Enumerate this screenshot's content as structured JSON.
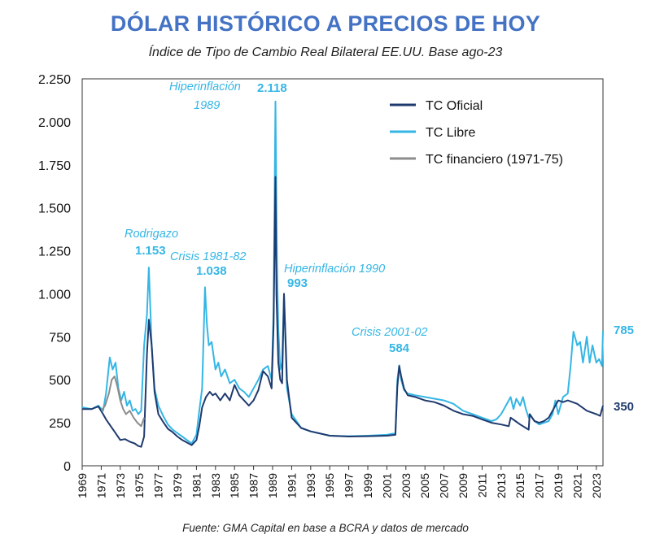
{
  "title": "DÓLAR HISTÓRICO A PRECIOS DE HOY",
  "subtitle": "Índice de Tipo de Cambio Real Bilateral EE.UU. Base ago-23",
  "source": "Fuente: GMA Capital en base a BCRA y datos de mercado",
  "colors": {
    "oficial": "#1f3a6e",
    "libre": "#35b6e5",
    "financiero": "#8c8c8c",
    "title": "#4472c4"
  },
  "chart_data": {
    "type": "line",
    "title": "DÓLAR HISTÓRICO A PRECIOS DE HOY",
    "subtitle": "Índice de Tipo de Cambio Real Bilateral EE.UU. Base ago-23",
    "xlim": [
      1969,
      2023.7
    ],
    "ylim": [
      0,
      2250
    ],
    "yticks": [
      0,
      250,
      500,
      750,
      1000,
      1250,
      1500,
      1750,
      2000,
      2250
    ],
    "ytick_labels": [
      "0",
      "250",
      "500",
      "750",
      "1.000",
      "1.250",
      "1.500",
      "1.750",
      "2.000",
      "2.250"
    ],
    "xticks": [
      "1969",
      "1971",
      "1973",
      "1975",
      "1977",
      "1979",
      "1981",
      "1983",
      "1985",
      "1987",
      "1989",
      "1991",
      "1993",
      "1995",
      "1997",
      "1999",
      "2001",
      "2003",
      "2005",
      "2007",
      "2009",
      "2011",
      "2013",
      "2015",
      "2017",
      "2019",
      "2021",
      "2023"
    ],
    "legend_position": "top-right",
    "grid": false,
    "series": [
      {
        "name": "TC Oficial",
        "color": "#1f3a6e",
        "x": [
          1969.0,
          1970.0,
          1970.7,
          1971.2,
          1971.5,
          1972.0,
          1972.5,
          1973.0,
          1973.5,
          1974.0,
          1974.5,
          1974.9,
          1975.2,
          1975.5,
          1975.8,
          1976.0,
          1976.3,
          1976.6,
          1977.0,
          1977.5,
          1978.0,
          1978.5,
          1979.0,
          1979.5,
          1980.0,
          1980.5,
          1981.0,
          1981.3,
          1981.6,
          1982.0,
          1982.4,
          1982.7,
          1983.0,
          1983.5,
          1984.0,
          1984.5,
          1985.0,
          1985.5,
          1986.0,
          1986.5,
          1987.0,
          1987.5,
          1988.0,
          1988.5,
          1988.9,
          1989.1,
          1989.3,
          1989.4,
          1989.6,
          1989.8,
          1990.0,
          1990.2,
          1990.5,
          1991.0,
          1992.0,
          1993.0,
          1995.0,
          1997.0,
          1999.0,
          2001.0,
          2001.9,
          2002.1,
          2002.3,
          2002.5,
          2002.8,
          2003.2,
          2004.0,
          2005.0,
          2006.0,
          2007.0,
          2008.0,
          2009.0,
          2010.0,
          2011.0,
          2012.0,
          2013.0,
          2013.8,
          2014.0,
          2014.5,
          2015.0,
          2015.9,
          2016.0,
          2016.5,
          2017.0,
          2017.5,
          2018.0,
          2018.4,
          2018.7,
          2019.0,
          2019.5,
          2020.0,
          2020.5,
          2021.0,
          2021.5,
          2022.0,
          2022.5,
          2023.0,
          2023.4,
          2023.6,
          2023.7
        ],
        "y": [
          330,
          330,
          345,
          300,
          270,
          230,
          190,
          150,
          155,
          140,
          130,
          115,
          110,
          170,
          650,
          850,
          700,
          430,
          300,
          255,
          215,
          195,
          170,
          150,
          135,
          120,
          150,
          230,
          340,
          400,
          430,
          410,
          420,
          380,
          420,
          380,
          470,
          410,
          380,
          350,
          380,
          440,
          550,
          520,
          450,
          820,
          1680,
          1000,
          600,
          500,
          480,
          1000,
          500,
          280,
          220,
          200,
          175,
          170,
          172,
          175,
          180,
          460,
          580,
          520,
          450,
          410,
          400,
          380,
          370,
          350,
          320,
          300,
          290,
          270,
          250,
          240,
          230,
          280,
          260,
          240,
          210,
          300,
          260,
          250,
          260,
          280,
          320,
          350,
          380,
          370,
          380,
          370,
          360,
          340,
          320,
          310,
          300,
          290,
          330,
          350
        ]
      },
      {
        "name": "TC Libre",
        "color": "#35b6e5",
        "x": [
          1969.0,
          1970.0,
          1970.7,
          1971.2,
          1971.5,
          1971.9,
          1972.2,
          1972.5,
          1972.8,
          1973.1,
          1973.4,
          1973.7,
          1974.0,
          1974.3,
          1974.6,
          1974.9,
          1975.2,
          1975.5,
          1975.8,
          1976.0,
          1976.3,
          1976.6,
          1977.0,
          1977.5,
          1978.0,
          1978.5,
          1979.0,
          1979.5,
          1980.0,
          1980.5,
          1981.0,
          1981.3,
          1981.6,
          1981.9,
          1982.1,
          1982.3,
          1982.6,
          1983.0,
          1983.3,
          1983.6,
          1984.0,
          1984.5,
          1985.0,
          1985.5,
          1986.0,
          1986.5,
          1987.0,
          1987.5,
          1988.0,
          1988.5,
          1988.9,
          1989.1,
          1989.3,
          1989.45,
          1989.6,
          1989.8,
          1990.0,
          1990.2,
          1990.5,
          1991.0,
          1992.0,
          1993.0,
          1995.0,
          1997.0,
          1999.0,
          2001.0,
          2001.9,
          2002.1,
          2002.3,
          2002.5,
          2002.8,
          2003.2,
          2004.0,
          2005.0,
          2006.0,
          2007.0,
          2008.0,
          2009.0,
          2010.0,
          2011.0,
          2012.0,
          2012.5,
          2013.0,
          2013.5,
          2014.0,
          2014.3,
          2014.6,
          2015.0,
          2015.3,
          2015.6,
          2015.9,
          2016.0,
          2016.5,
          2017.0,
          2017.5,
          2018.0,
          2018.4,
          2018.7,
          2019.0,
          2019.5,
          2020.0,
          2020.3,
          2020.6,
          2021.0,
          2021.3,
          2021.6,
          2022.0,
          2022.3,
          2022.6,
          2023.0,
          2023.3,
          2023.6,
          2023.7
        ],
        "y": [
          340,
          330,
          350,
          320,
          420,
          630,
          560,
          600,
          450,
          380,
          430,
          350,
          380,
          320,
          330,
          300,
          320,
          700,
          880,
          1153,
          700,
          450,
          350,
          290,
          240,
          210,
          190,
          170,
          150,
          130,
          180,
          320,
          450,
          1038,
          820,
          700,
          720,
          560,
          600,
          520,
          560,
          480,
          500,
          450,
          430,
          400,
          450,
          500,
          560,
          580,
          500,
          900,
          2118,
          1200,
          800,
          560,
          600,
          993,
          450,
          300,
          220,
          200,
          175,
          172,
          175,
          180,
          190,
          500,
          584,
          500,
          440,
          420,
          410,
          400,
          390,
          380,
          360,
          320,
          300,
          280,
          260,
          270,
          300,
          350,
          400,
          330,
          390,
          350,
          400,
          330,
          280,
          300,
          260,
          240,
          250,
          260,
          300,
          380,
          300,
          400,
          420,
          580,
          780,
          700,
          720,
          600,
          750,
          600,
          700,
          600,
          620,
          580,
          785
        ]
      },
      {
        "name": "TC financiero (1971-75)",
        "color": "#8c8c8c",
        "x": [
          1971.0,
          1971.4,
          1971.8,
          1972.1,
          1972.4,
          1972.7,
          1973.0,
          1973.3,
          1973.6,
          1974.0,
          1974.4,
          1974.8,
          1975.2,
          1975.5
        ],
        "y": [
          320,
          350,
          420,
          500,
          520,
          460,
          380,
          330,
          300,
          320,
          280,
          250,
          230,
          280
        ]
      }
    ],
    "annotations": [
      {
        "label": "Rodrigazo",
        "value": "1.153"
      },
      {
        "label": "Crisis 1981-82",
        "value": "1.038"
      },
      {
        "label": "Hiperinflación",
        "label2": "1989",
        "value": "2.118"
      },
      {
        "label": "Hiperinflación 1990",
        "value": "993"
      },
      {
        "label": "Crisis 2001-02",
        "value": "584"
      }
    ],
    "end_labels": {
      "libre": "785",
      "oficial": "350"
    }
  }
}
